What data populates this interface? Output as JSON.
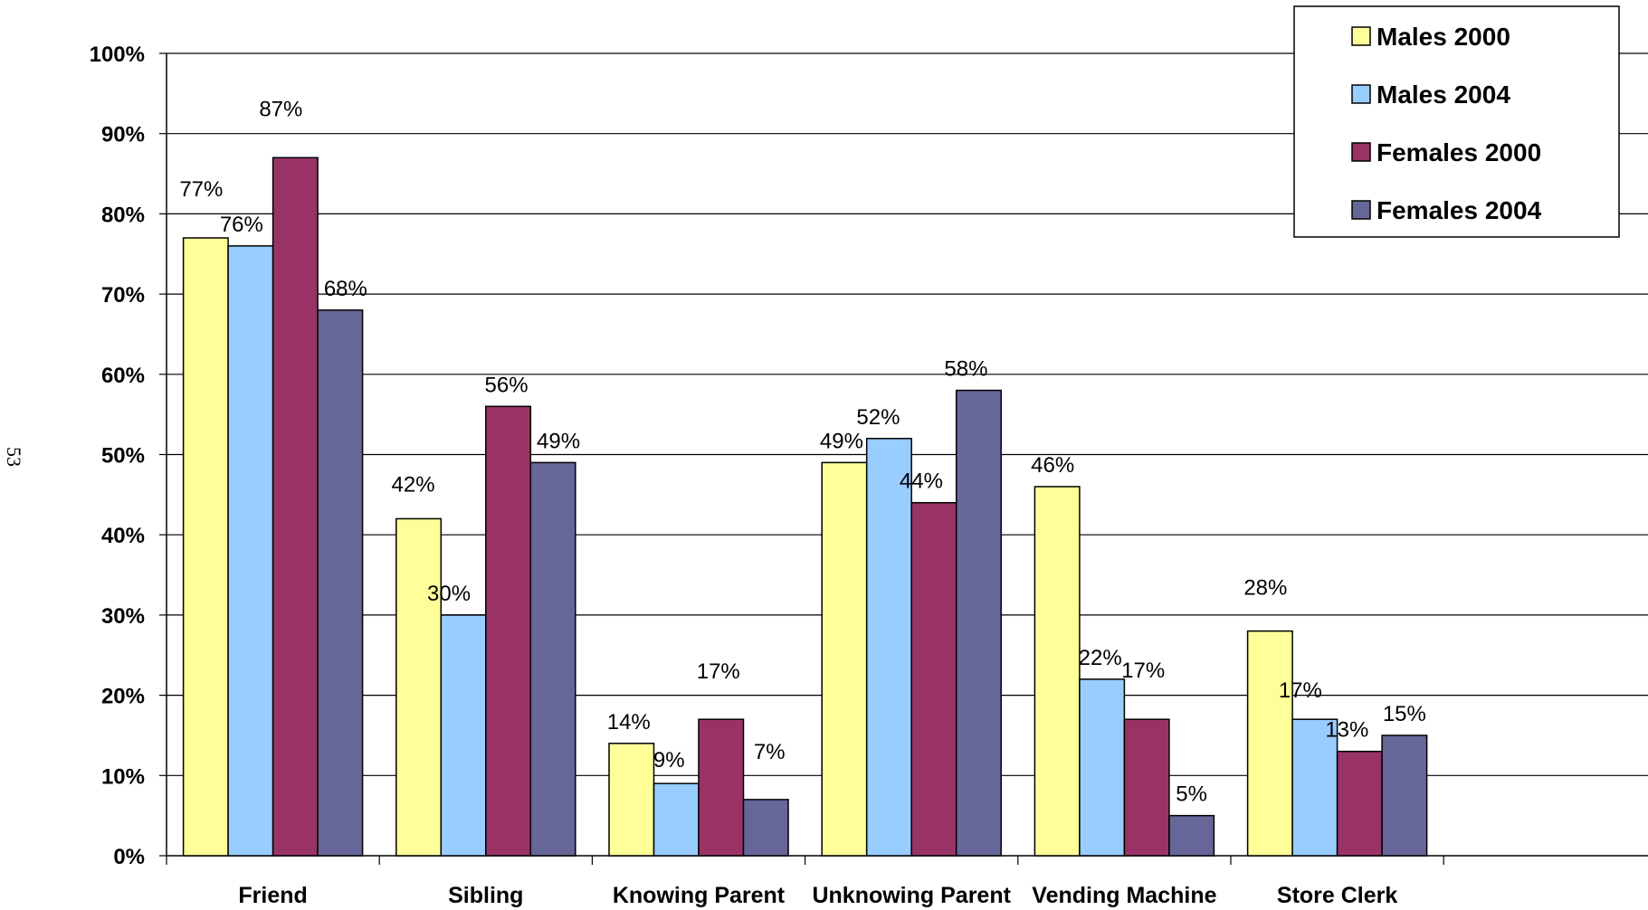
{
  "page_number": "53",
  "chart_data": {
    "type": "bar",
    "categories": [
      "Friend",
      "Sibling",
      "Knowing Parent",
      "Unknowing Parent",
      "Vending Machine",
      "Store Clerk"
    ],
    "series": [
      {
        "name": "Males 2000",
        "color": "#FFFF99",
        "values": [
          77,
          42,
          14,
          49,
          46,
          28
        ]
      },
      {
        "name": "Males 2004",
        "color": "#99CCFF",
        "values": [
          76,
          30,
          9,
          52,
          22,
          17
        ]
      },
      {
        "name": "Females 2000",
        "color": "#993366",
        "values": [
          87,
          56,
          17,
          44,
          17,
          13
        ]
      },
      {
        "name": "Females 2004",
        "color": "#666699",
        "values": [
          68,
          49,
          7,
          58,
          5,
          15
        ]
      }
    ],
    "data_labels": [
      [
        "77%",
        "42%",
        "14%",
        "49%",
        "46%",
        "28%"
      ],
      [
        "76%",
        "30%",
        "9%",
        "52%",
        "22%",
        "17%"
      ],
      [
        "87%",
        "56%",
        "17%",
        "44%",
        "17%",
        "13%"
      ],
      [
        "68%",
        "49%",
        "7%",
        "58%",
        "5%",
        "15%"
      ]
    ],
    "y_tick_labels": [
      "0%",
      "10%",
      "20%",
      "30%",
      "40%",
      "50%",
      "60%",
      "70%",
      "80%",
      "90%",
      "100%"
    ],
    "ylim": [
      0,
      100
    ],
    "grid": true,
    "legend_position": "top-right",
    "title": "",
    "xlabel": "",
    "ylabel": ""
  }
}
